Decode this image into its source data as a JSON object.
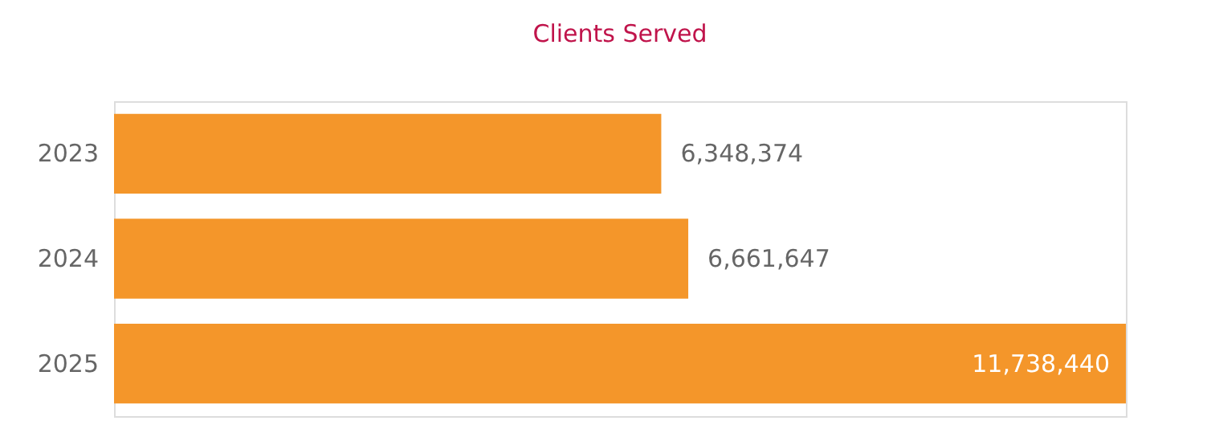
{
  "chart_data": {
    "type": "bar",
    "orientation": "horizontal",
    "title": "Clients Served",
    "categories": [
      "2023",
      "2024",
      "2025"
    ],
    "values": [
      6348374,
      6661647,
      11738440
    ],
    "color": "#f4962a",
    "value_labels": [
      "6,348,374",
      "6,661,647",
      "11,738,440"
    ],
    "tick_labels": "y",
    "grid": false
  }
}
